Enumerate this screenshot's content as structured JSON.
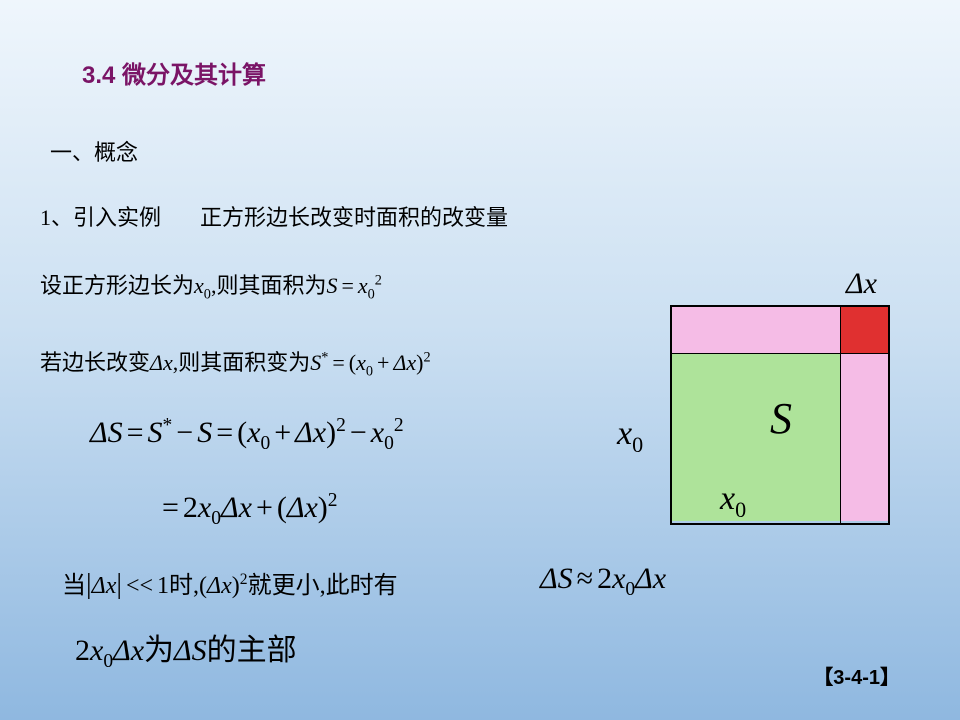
{
  "title": "3.4 微分及其计算",
  "section1": "一、概念",
  "item1_label": "1、引入实例",
  "item1_desc": "正方形边长改变时面积的改变量",
  "line3_prefix": "设正方形边长为",
  "line3_mid": ",则其面积为",
  "line4_prefix": "若边长改变",
  "line4_mid": ",则其面积变为",
  "cond_prefix": "当",
  "cond_mid": "时,",
  "cond_suffix": "就更小,此时有",
  "main_part": "的主部",
  "wei": "为",
  "slide_number": "【3-4-1】",
  "symbols": {
    "Delta": "Δ",
    "x": "x",
    "S": "S",
    "x0": "x",
    "zero": "0",
    "two": "2",
    "star": "*",
    "eq": "=",
    "minus": "−",
    "plus": "+",
    "approx": "≈",
    "lparen": "(",
    "rparen": ")",
    "ll": "<<",
    "one": "1",
    "abs_l": "|",
    "abs_r": "|"
  },
  "diagram": {
    "outer_size": 220,
    "inner_size": 170,
    "strip": 48,
    "colors": {
      "green": "#aee39a",
      "pink": "#f5bce6",
      "red": "#e03030",
      "border": "#000000"
    },
    "labels": {
      "dx": "Δx",
      "x0": "x",
      "S": "S"
    }
  }
}
